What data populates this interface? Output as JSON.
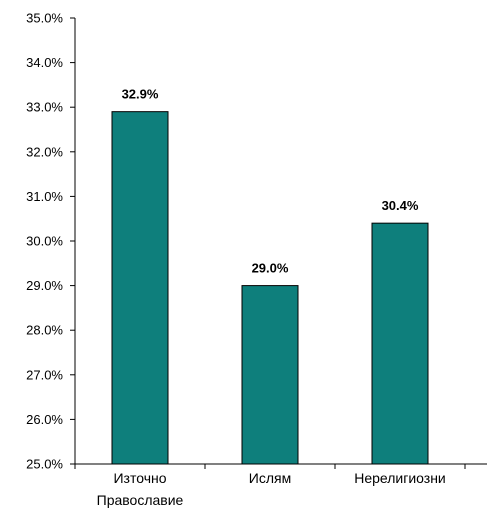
{
  "chart_data": {
    "type": "bar",
    "categories": [
      [
        "Източно",
        "Православие"
      ],
      [
        "Ислям"
      ],
      [
        "Нерелигиозни"
      ]
    ],
    "values": [
      32.9,
      29.0,
      30.4
    ],
    "data_labels": [
      "32.9%",
      "29.0%",
      "30.4%"
    ],
    "ylim": [
      25.0,
      35.0
    ],
    "yticks": [
      25.0,
      26.0,
      27.0,
      28.0,
      29.0,
      30.0,
      31.0,
      32.0,
      33.0,
      34.0,
      35.0
    ],
    "ytick_labels": [
      "25.0%",
      "26.0%",
      "27.0%",
      "28.0%",
      "29.0%",
      "30.0%",
      "31.0%",
      "32.0%",
      "33.0%",
      "34.0%",
      "35.0%"
    ],
    "grid": false,
    "legend": "none",
    "bar_color": "#0E7F7C",
    "title": "",
    "xlabel": "",
    "ylabel": ""
  }
}
